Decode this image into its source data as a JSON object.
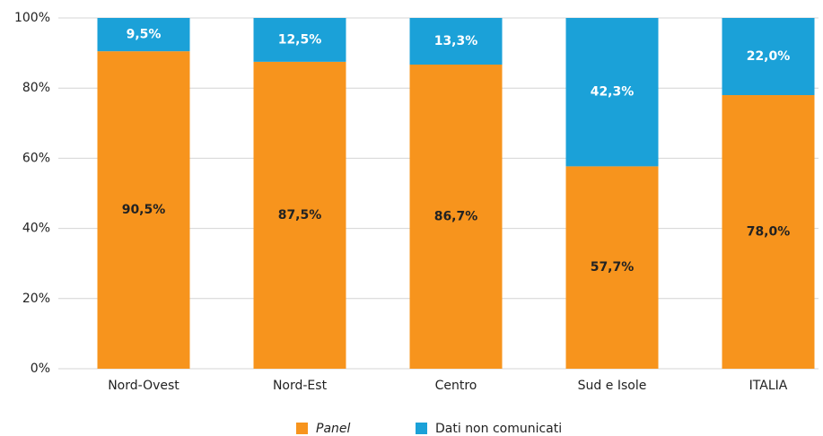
{
  "chart_data": {
    "type": "stacked_bar",
    "categories": [
      "Nord-Ovest",
      "Nord-Est",
      "Centro",
      "Sud e Isole",
      "ITALIA"
    ],
    "series": [
      {
        "name": "Panel",
        "color": "#f7941d",
        "values": [
          90.5,
          87.5,
          86.7,
          57.7,
          78.0
        ],
        "value_labels": [
          "90,5%",
          "87,5%",
          "86,7%",
          "57,7%",
          "78,0%"
        ]
      },
      {
        "name": "Dati non comunicati",
        "color": "#1ba1d8",
        "values": [
          9.5,
          12.5,
          13.3,
          42.3,
          22.0
        ],
        "value_labels": [
          "9,5%",
          "12,5%",
          "13,3%",
          "42,3%",
          "22,0%"
        ]
      }
    ],
    "ylim": [
      0,
      100
    ],
    "yticks": [
      {
        "value": 0,
        "label": "0%"
      },
      {
        "value": 20,
        "label": "20%"
      },
      {
        "value": 40,
        "label": "40%"
      },
      {
        "value": 60,
        "label": "60%"
      },
      {
        "value": 80,
        "label": "80%"
      },
      {
        "value": 100,
        "label": "100%"
      }
    ],
    "grid": true
  }
}
